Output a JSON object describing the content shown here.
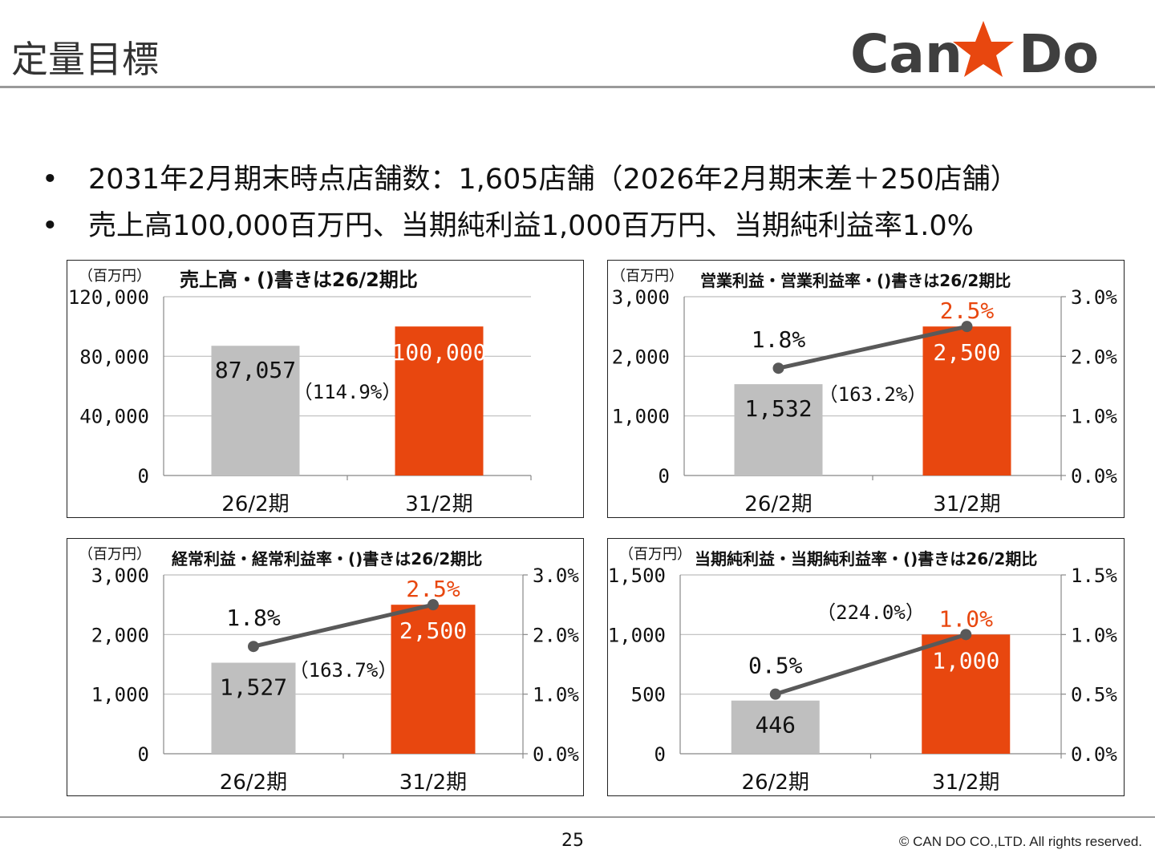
{
  "page": {
    "title": "定量目標",
    "logo_text_left": "Can",
    "logo_text_right": "Do",
    "page_number": "25",
    "copyright": "© CAN DO CO.,LTD. All rights reserved."
  },
  "bullets": [
    "2031年2月期末時点店舗数：1,605店舗（2026年2月期末差＋250店舗）",
    "売上高100,000百万円、当期純利益1,000百万円、当期純利益率1.0%"
  ],
  "colors": {
    "gray_bar": "#bfbfbf",
    "orange_bar": "#e8470f",
    "line": "#595959",
    "orange_label": "#e8470f",
    "logo": "#3f3f3f",
    "star": "#e8470f"
  },
  "chart_data": [
    {
      "type": "bar",
      "unit": "（百万円）",
      "title": "売上高・()書きは26/2期比",
      "categories": [
        "26/2期",
        "31/2期"
      ],
      "series": [
        {
          "values": [
            87057,
            100000
          ]
        }
      ],
      "value_labels": [
        "87,057",
        "100,000"
      ],
      "growth_label": "（114.9%）",
      "ylim": [
        0,
        120000
      ],
      "yticks": [
        0,
        40000,
        80000,
        120000
      ],
      "ytick_labels": [
        "0",
        "40,000",
        "80,000",
        "120,000"
      ],
      "grid": true
    },
    {
      "type": "bar",
      "unit": "（百万円）",
      "title": "営業利益・営業利益率・()書きは26/2期比",
      "categories": [
        "26/2期",
        "31/2期"
      ],
      "series": [
        {
          "values": [
            1532,
            2500
          ]
        },
        {
          "type": "line",
          "axis": "right",
          "values": [
            1.8,
            2.5
          ]
        }
      ],
      "value_labels": [
        "1,532",
        "2,500"
      ],
      "rate_labels": [
        "1.8%",
        "2.5%"
      ],
      "growth_label": "（163.2%）",
      "ylim": [
        0,
        3000
      ],
      "yticks": [
        0,
        1000,
        2000,
        3000
      ],
      "ytick_labels": [
        "0",
        "1,000",
        "2,000",
        "3,000"
      ],
      "y2lim": [
        0,
        3.0
      ],
      "y2ticks": [
        0,
        1.0,
        2.0,
        3.0
      ],
      "y2tick_labels": [
        "0.0%",
        "1.0%",
        "2.0%",
        "3.0%"
      ],
      "grid": true
    },
    {
      "type": "bar",
      "unit": "（百万円）",
      "title": "経常利益・経常利益率・()書きは26/2期比",
      "categories": [
        "26/2期",
        "31/2期"
      ],
      "series": [
        {
          "values": [
            1527,
            2500
          ]
        },
        {
          "type": "line",
          "axis": "right",
          "values": [
            1.8,
            2.5
          ]
        }
      ],
      "value_labels": [
        "1,527",
        "2,500"
      ],
      "rate_labels": [
        "1.8%",
        "2.5%"
      ],
      "growth_label": "（163.7%）",
      "ylim": [
        0,
        3000
      ],
      "yticks": [
        0,
        1000,
        2000,
        3000
      ],
      "ytick_labels": [
        "0",
        "1,000",
        "2,000",
        "3,000"
      ],
      "y2lim": [
        0,
        3.0
      ],
      "y2ticks": [
        0,
        1.0,
        2.0,
        3.0
      ],
      "y2tick_labels": [
        "0.0%",
        "1.0%",
        "2.0%",
        "3.0%"
      ],
      "grid": true
    },
    {
      "type": "bar",
      "unit": "（百万円）",
      "title": "当期純利益・当期純利益率・()書きは26/2期比",
      "categories": [
        "26/2期",
        "31/2期"
      ],
      "series": [
        {
          "values": [
            446,
            1000
          ]
        },
        {
          "type": "line",
          "axis": "right",
          "values": [
            0.5,
            1.0
          ]
        }
      ],
      "value_labels": [
        "446",
        "1,000"
      ],
      "rate_labels": [
        "0.5%",
        "1.0%"
      ],
      "growth_label": "（224.0%）",
      "ylim": [
        0,
        1500
      ],
      "yticks": [
        0,
        500,
        1000,
        1500
      ],
      "ytick_labels": [
        "0",
        "500",
        "1,000",
        "1,500"
      ],
      "y2lim": [
        0,
        1.5
      ],
      "y2ticks": [
        0,
        0.5,
        1.0,
        1.5
      ],
      "y2tick_labels": [
        "0.0%",
        "0.5%",
        "1.0%",
        "1.5%"
      ],
      "grid": true
    }
  ]
}
